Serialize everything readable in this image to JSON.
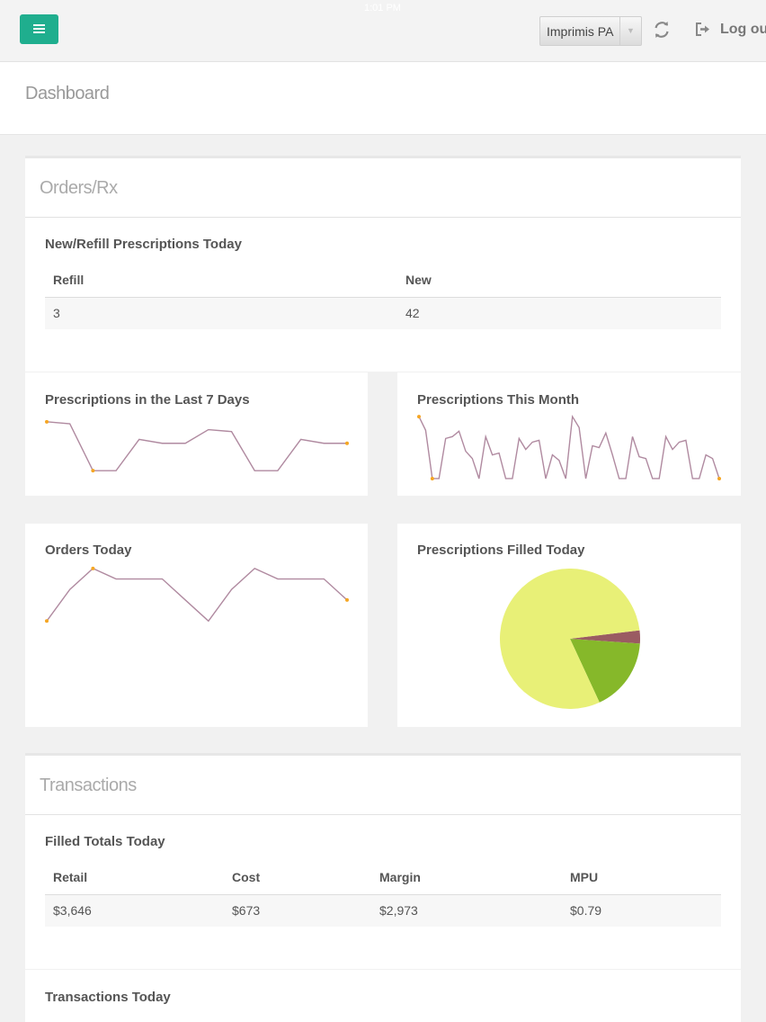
{
  "app": {
    "org_selector": "Imprimis PA",
    "logout_label": "Log ou",
    "status_time": "1:01 PM"
  },
  "page": {
    "title": "Dashboard"
  },
  "orders_section": {
    "title": "Orders/Rx",
    "new_refill": {
      "title": "New/Refill Prescriptions Today",
      "columns": [
        "Refill",
        "New"
      ],
      "row": [
        "3",
        "42"
      ]
    }
  },
  "cards": {
    "last7": "Prescriptions in the Last 7 Days",
    "month": "Prescriptions This Month",
    "orders_today": "Orders Today",
    "filled_today": "Prescriptions Filled Today"
  },
  "transactions_section": {
    "title": "Transactions",
    "filled_totals": {
      "title": "Filled Totals Today",
      "columns": [
        "Retail",
        "Cost",
        "Margin",
        "MPU"
      ],
      "row": [
        "$3,646",
        "$673",
        "$2,973",
        "$0.79"
      ]
    },
    "transactions_today": {
      "title": "Transactions Today"
    }
  },
  "colors": {
    "accent": "#1fae8e",
    "sparkline": "#b08aa0",
    "spot": "#f5a623",
    "pie": [
      "#e8f077",
      "#86b82a",
      "#9a5b62"
    ]
  },
  "chart_data": [
    {
      "type": "line",
      "series": [
        {
          "values": [
            11,
            10.8,
            6,
            6,
            9.2,
            8.8,
            8.8,
            10.2,
            10,
            6,
            6,
            9.2,
            8.8,
            8.8
          ]
        }
      ],
      "ylim": [
        5,
        12
      ]
    },
    {
      "type": "line",
      "series": [
        {
          "values": [
            11,
            9.5,
            4.2,
            4.2,
            8.6,
            8.8,
            9.4,
            7.2,
            6.4,
            4.2,
            8.8,
            6.8,
            7.0,
            4.2,
            4.2,
            8.6,
            7.4,
            8.2,
            8.4,
            4.2,
            6.8,
            6.2,
            4.2,
            11,
            9.8,
            4.2,
            7.8,
            7.6,
            9.2,
            6.8,
            4.2,
            4.2,
            8.8,
            6.6,
            6.4,
            4.2,
            4.2,
            8.8,
            7.4,
            8.2,
            8.4,
            4.2,
            4.2,
            6.8,
            6.4,
            4.2
          ]
        }
      ],
      "ylim": [
        4,
        11.5
      ]
    },
    {
      "type": "line",
      "series": [
        {
          "values": [
            3,
            6,
            8,
            7,
            7,
            7,
            5,
            3,
            6,
            8,
            7,
            7,
            7,
            5
          ]
        }
      ],
      "ylim": [
        2,
        8.5
      ]
    },
    {
      "type": "pie",
      "values": [
        80,
        17,
        3
      ]
    }
  ]
}
